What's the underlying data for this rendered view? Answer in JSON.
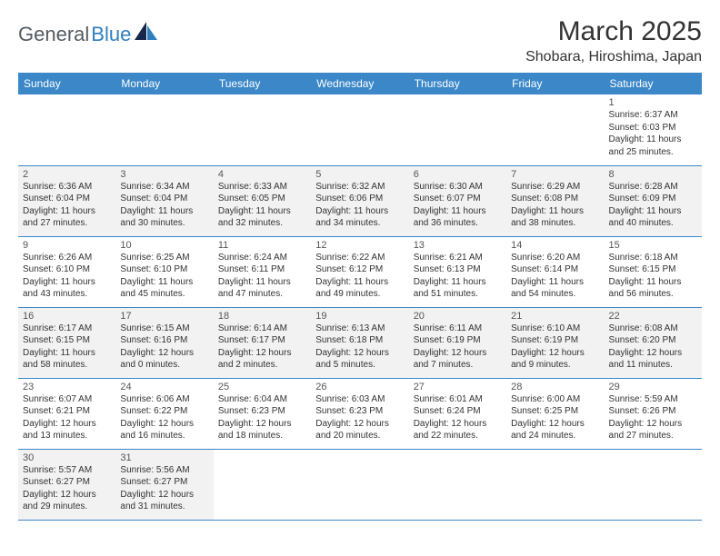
{
  "brand": {
    "part1": "General",
    "part2": "Blue"
  },
  "title": "March 2025",
  "location": "Shobara, Hiroshima, Japan",
  "colors": {
    "header_bg": "#3b87c8",
    "header_fg": "#ffffff",
    "row_alt_bg": "#f2f2f2",
    "border": "#3b87c8",
    "logo_gray": "#555b60",
    "logo_blue": "#2f7fbf"
  },
  "dayNames": [
    "Sunday",
    "Monday",
    "Tuesday",
    "Wednesday",
    "Thursday",
    "Friday",
    "Saturday"
  ],
  "labels": {
    "sunrise": "Sunrise:",
    "sunset": "Sunset:",
    "daylight": "Daylight:"
  },
  "weeks": [
    [
      null,
      null,
      null,
      null,
      null,
      null,
      {
        "d": 1,
        "sr": "6:37 AM",
        "ss": "6:03 PM",
        "dl": "11 hours and 25 minutes."
      }
    ],
    [
      {
        "d": 2,
        "sr": "6:36 AM",
        "ss": "6:04 PM",
        "dl": "11 hours and 27 minutes."
      },
      {
        "d": 3,
        "sr": "6:34 AM",
        "ss": "6:04 PM",
        "dl": "11 hours and 30 minutes."
      },
      {
        "d": 4,
        "sr": "6:33 AM",
        "ss": "6:05 PM",
        "dl": "11 hours and 32 minutes."
      },
      {
        "d": 5,
        "sr": "6:32 AM",
        "ss": "6:06 PM",
        "dl": "11 hours and 34 minutes."
      },
      {
        "d": 6,
        "sr": "6:30 AM",
        "ss": "6:07 PM",
        "dl": "11 hours and 36 minutes."
      },
      {
        "d": 7,
        "sr": "6:29 AM",
        "ss": "6:08 PM",
        "dl": "11 hours and 38 minutes."
      },
      {
        "d": 8,
        "sr": "6:28 AM",
        "ss": "6:09 PM",
        "dl": "11 hours and 40 minutes."
      }
    ],
    [
      {
        "d": 9,
        "sr": "6:26 AM",
        "ss": "6:10 PM",
        "dl": "11 hours and 43 minutes."
      },
      {
        "d": 10,
        "sr": "6:25 AM",
        "ss": "6:10 PM",
        "dl": "11 hours and 45 minutes."
      },
      {
        "d": 11,
        "sr": "6:24 AM",
        "ss": "6:11 PM",
        "dl": "11 hours and 47 minutes."
      },
      {
        "d": 12,
        "sr": "6:22 AM",
        "ss": "6:12 PM",
        "dl": "11 hours and 49 minutes."
      },
      {
        "d": 13,
        "sr": "6:21 AM",
        "ss": "6:13 PM",
        "dl": "11 hours and 51 minutes."
      },
      {
        "d": 14,
        "sr": "6:20 AM",
        "ss": "6:14 PM",
        "dl": "11 hours and 54 minutes."
      },
      {
        "d": 15,
        "sr": "6:18 AM",
        "ss": "6:15 PM",
        "dl": "11 hours and 56 minutes."
      }
    ],
    [
      {
        "d": 16,
        "sr": "6:17 AM",
        "ss": "6:15 PM",
        "dl": "11 hours and 58 minutes."
      },
      {
        "d": 17,
        "sr": "6:15 AM",
        "ss": "6:16 PM",
        "dl": "12 hours and 0 minutes."
      },
      {
        "d": 18,
        "sr": "6:14 AM",
        "ss": "6:17 PM",
        "dl": "12 hours and 2 minutes."
      },
      {
        "d": 19,
        "sr": "6:13 AM",
        "ss": "6:18 PM",
        "dl": "12 hours and 5 minutes."
      },
      {
        "d": 20,
        "sr": "6:11 AM",
        "ss": "6:19 PM",
        "dl": "12 hours and 7 minutes."
      },
      {
        "d": 21,
        "sr": "6:10 AM",
        "ss": "6:19 PM",
        "dl": "12 hours and 9 minutes."
      },
      {
        "d": 22,
        "sr": "6:08 AM",
        "ss": "6:20 PM",
        "dl": "12 hours and 11 minutes."
      }
    ],
    [
      {
        "d": 23,
        "sr": "6:07 AM",
        "ss": "6:21 PM",
        "dl": "12 hours and 13 minutes."
      },
      {
        "d": 24,
        "sr": "6:06 AM",
        "ss": "6:22 PM",
        "dl": "12 hours and 16 minutes."
      },
      {
        "d": 25,
        "sr": "6:04 AM",
        "ss": "6:23 PM",
        "dl": "12 hours and 18 minutes."
      },
      {
        "d": 26,
        "sr": "6:03 AM",
        "ss": "6:23 PM",
        "dl": "12 hours and 20 minutes."
      },
      {
        "d": 27,
        "sr": "6:01 AM",
        "ss": "6:24 PM",
        "dl": "12 hours and 22 minutes."
      },
      {
        "d": 28,
        "sr": "6:00 AM",
        "ss": "6:25 PM",
        "dl": "12 hours and 24 minutes."
      },
      {
        "d": 29,
        "sr": "5:59 AM",
        "ss": "6:26 PM",
        "dl": "12 hours and 27 minutes."
      }
    ],
    [
      {
        "d": 30,
        "sr": "5:57 AM",
        "ss": "6:27 PM",
        "dl": "12 hours and 29 minutes."
      },
      {
        "d": 31,
        "sr": "5:56 AM",
        "ss": "6:27 PM",
        "dl": "12 hours and 31 minutes."
      },
      null,
      null,
      null,
      null,
      null
    ]
  ]
}
